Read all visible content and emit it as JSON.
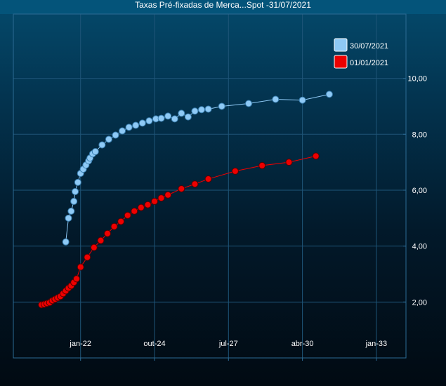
{
  "chart_data": {
    "type": "line",
    "title": "Taxas Pré-fixadas de Merca...Spot -31/07/2021",
    "xlabel": "",
    "ylabel": "",
    "x_ticks": [
      "jan-22",
      "out-24",
      "jul-27",
      "abr-30",
      "jan-33"
    ],
    "y_ticks": [
      "2,00",
      "4,00",
      "6,00",
      "8,00",
      "10,00"
    ],
    "xlim": [
      2019.5,
      2034.1
    ],
    "ylim": [
      0,
      12.3
    ],
    "grid": true,
    "legend_position": "top-right",
    "series": [
      {
        "name": "30/07/2021",
        "color": "#8ec9f5",
        "points": [
          [
            2021.45,
            4.15
          ],
          [
            2021.55,
            5.0
          ],
          [
            2021.65,
            5.25
          ],
          [
            2021.75,
            5.6
          ],
          [
            2021.8,
            5.95
          ],
          [
            2021.9,
            6.28
          ],
          [
            2022.0,
            6.6
          ],
          [
            2022.1,
            6.75
          ],
          [
            2022.2,
            6.9
          ],
          [
            2022.3,
            7.05
          ],
          [
            2022.35,
            7.15
          ],
          [
            2022.45,
            7.3
          ],
          [
            2022.55,
            7.38
          ],
          [
            2022.8,
            7.62
          ],
          [
            2023.05,
            7.82
          ],
          [
            2023.3,
            7.97
          ],
          [
            2023.55,
            8.12
          ],
          [
            2023.8,
            8.25
          ],
          [
            2024.05,
            8.32
          ],
          [
            2024.3,
            8.4
          ],
          [
            2024.55,
            8.48
          ],
          [
            2024.8,
            8.55
          ],
          [
            2025.0,
            8.57
          ],
          [
            2025.25,
            8.65
          ],
          [
            2025.5,
            8.55
          ],
          [
            2025.75,
            8.75
          ],
          [
            2026.0,
            8.62
          ],
          [
            2026.25,
            8.83
          ],
          [
            2026.5,
            8.88
          ],
          [
            2026.75,
            8.9
          ],
          [
            2027.25,
            9.0
          ],
          [
            2028.25,
            9.1
          ],
          [
            2029.25,
            9.25
          ],
          [
            2030.25,
            9.22
          ],
          [
            2031.25,
            9.43
          ]
        ]
      },
      {
        "name": "01/01/2021",
        "color": "#ee0000",
        "points": [
          [
            2020.55,
            1.9
          ],
          [
            2020.65,
            1.92
          ],
          [
            2020.75,
            1.95
          ],
          [
            2020.85,
            1.98
          ],
          [
            2020.95,
            2.05
          ],
          [
            2021.05,
            2.1
          ],
          [
            2021.15,
            2.15
          ],
          [
            2021.25,
            2.2
          ],
          [
            2021.35,
            2.3
          ],
          [
            2021.45,
            2.4
          ],
          [
            2021.55,
            2.5
          ],
          [
            2021.65,
            2.58
          ],
          [
            2021.75,
            2.7
          ],
          [
            2021.85,
            2.83
          ],
          [
            2022.0,
            3.25
          ],
          [
            2022.25,
            3.6
          ],
          [
            2022.5,
            3.95
          ],
          [
            2022.75,
            4.2
          ],
          [
            2023.0,
            4.45
          ],
          [
            2023.25,
            4.7
          ],
          [
            2023.5,
            4.88
          ],
          [
            2023.75,
            5.1
          ],
          [
            2024.0,
            5.25
          ],
          [
            2024.25,
            5.38
          ],
          [
            2024.5,
            5.48
          ],
          [
            2024.75,
            5.6
          ],
          [
            2025.0,
            5.72
          ],
          [
            2025.25,
            5.83
          ],
          [
            2025.75,
            6.05
          ],
          [
            2026.25,
            6.22
          ],
          [
            2026.75,
            6.4
          ],
          [
            2027.75,
            6.68
          ],
          [
            2028.75,
            6.88
          ],
          [
            2029.75,
            7.0
          ],
          [
            2030.75,
            7.22
          ]
        ]
      }
    ]
  }
}
